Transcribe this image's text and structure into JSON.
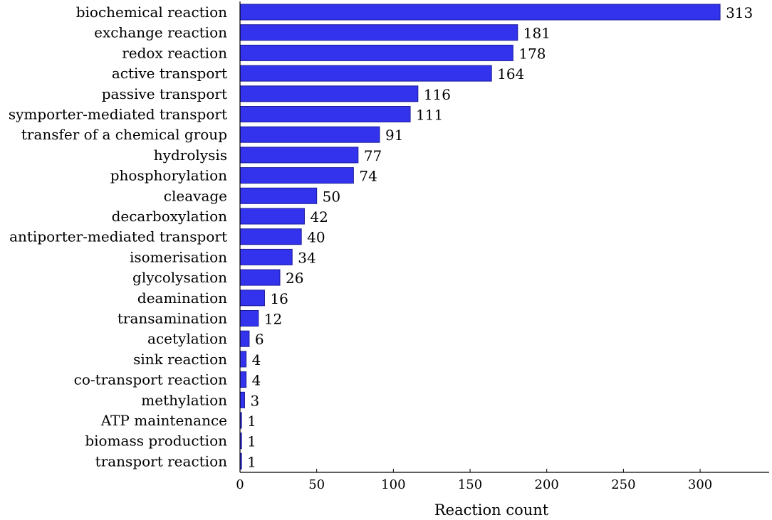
{
  "chart_data": {
    "type": "bar",
    "orientation": "horizontal",
    "categories": [
      "biochemical reaction",
      "exchange reaction",
      "redox reaction",
      "active transport",
      "passive transport",
      "symporter-mediated transport",
      "transfer of a chemical group",
      "hydrolysis",
      "phosphorylation",
      "cleavage",
      "decarboxylation",
      "antiporter-mediated transport",
      "isomerisation",
      "glycolysation",
      "deamination",
      "transamination",
      "acetylation",
      "sink reaction",
      "co-transport reaction",
      "methylation",
      "ATP maintenance",
      "biomass production",
      "transport reaction"
    ],
    "values": [
      313,
      181,
      178,
      164,
      116,
      111,
      91,
      77,
      74,
      50,
      42,
      40,
      34,
      26,
      16,
      12,
      6,
      4,
      4,
      3,
      1,
      1,
      1
    ],
    "xlabel": "Reaction count",
    "ylabel": "",
    "title": "",
    "xlim": [
      0,
      345
    ],
    "x_ticks": [
      0,
      50,
      100,
      150,
      200,
      250,
      300
    ],
    "grid": false,
    "legend": "none",
    "colors": {
      "bar_fill": "#3333ee",
      "bar_stroke": "#1a1a99",
      "axis": "#000000",
      "text": "#000000"
    }
  }
}
